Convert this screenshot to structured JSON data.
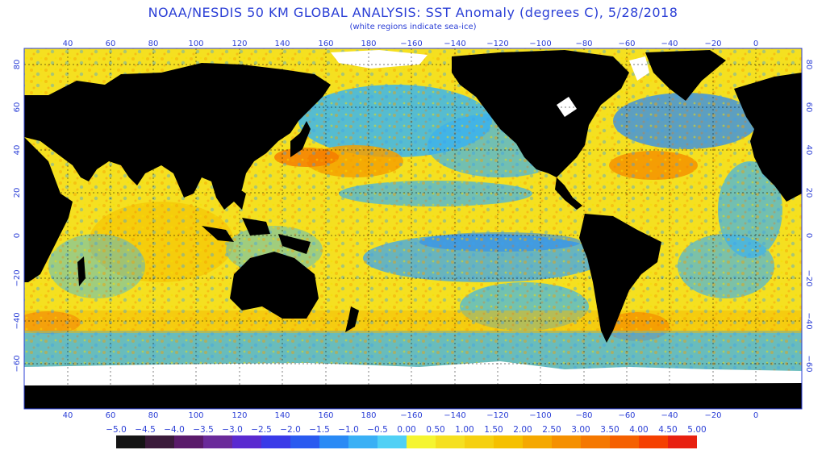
{
  "title": "NOAA/NESDIS 50 KM GLOBAL ANALYSIS: SST Anomaly (degrees C), 5/28/2018",
  "subtitle": "(white regions indicate sea-ice)",
  "map": {
    "lon_ticks": [
      "40",
      "60",
      "80",
      "100",
      "120",
      "140",
      "160",
      "180",
      "−160",
      "−140",
      "−120",
      "−100",
      "−80",
      "−60",
      "−40",
      "−20",
      "0"
    ],
    "lat_ticks": [
      "80",
      "60",
      "40",
      "20",
      "0",
      "−20",
      "−40",
      "−60"
    ],
    "land_color": "#000000",
    "ice_color": "#ffffff"
  },
  "colorbar": {
    "labels": [
      "−5.0",
      "−4.5",
      "−4.0",
      "−3.5",
      "−3.0",
      "−2.5",
      "−2.0",
      "−1.5",
      "−1.0",
      "−0.5",
      "0.00",
      "0.50",
      "1.00",
      "1.50",
      "2.00",
      "2.50",
      "3.00",
      "3.50",
      "4.00",
      "4.50",
      "5.00"
    ],
    "colors": [
      "#141414",
      "#3a1a3a",
      "#5a1a6a",
      "#6a2a9a",
      "#5a2ad0",
      "#3a3ae8",
      "#2a5af0",
      "#2a8af5",
      "#3ab0f5",
      "#50d0f5",
      "#f5f530",
      "#f5e020",
      "#f5d010",
      "#f5c000",
      "#f5a800",
      "#f59000",
      "#f57800",
      "#f56000",
      "#f54000",
      "#e82010"
    ]
  }
}
